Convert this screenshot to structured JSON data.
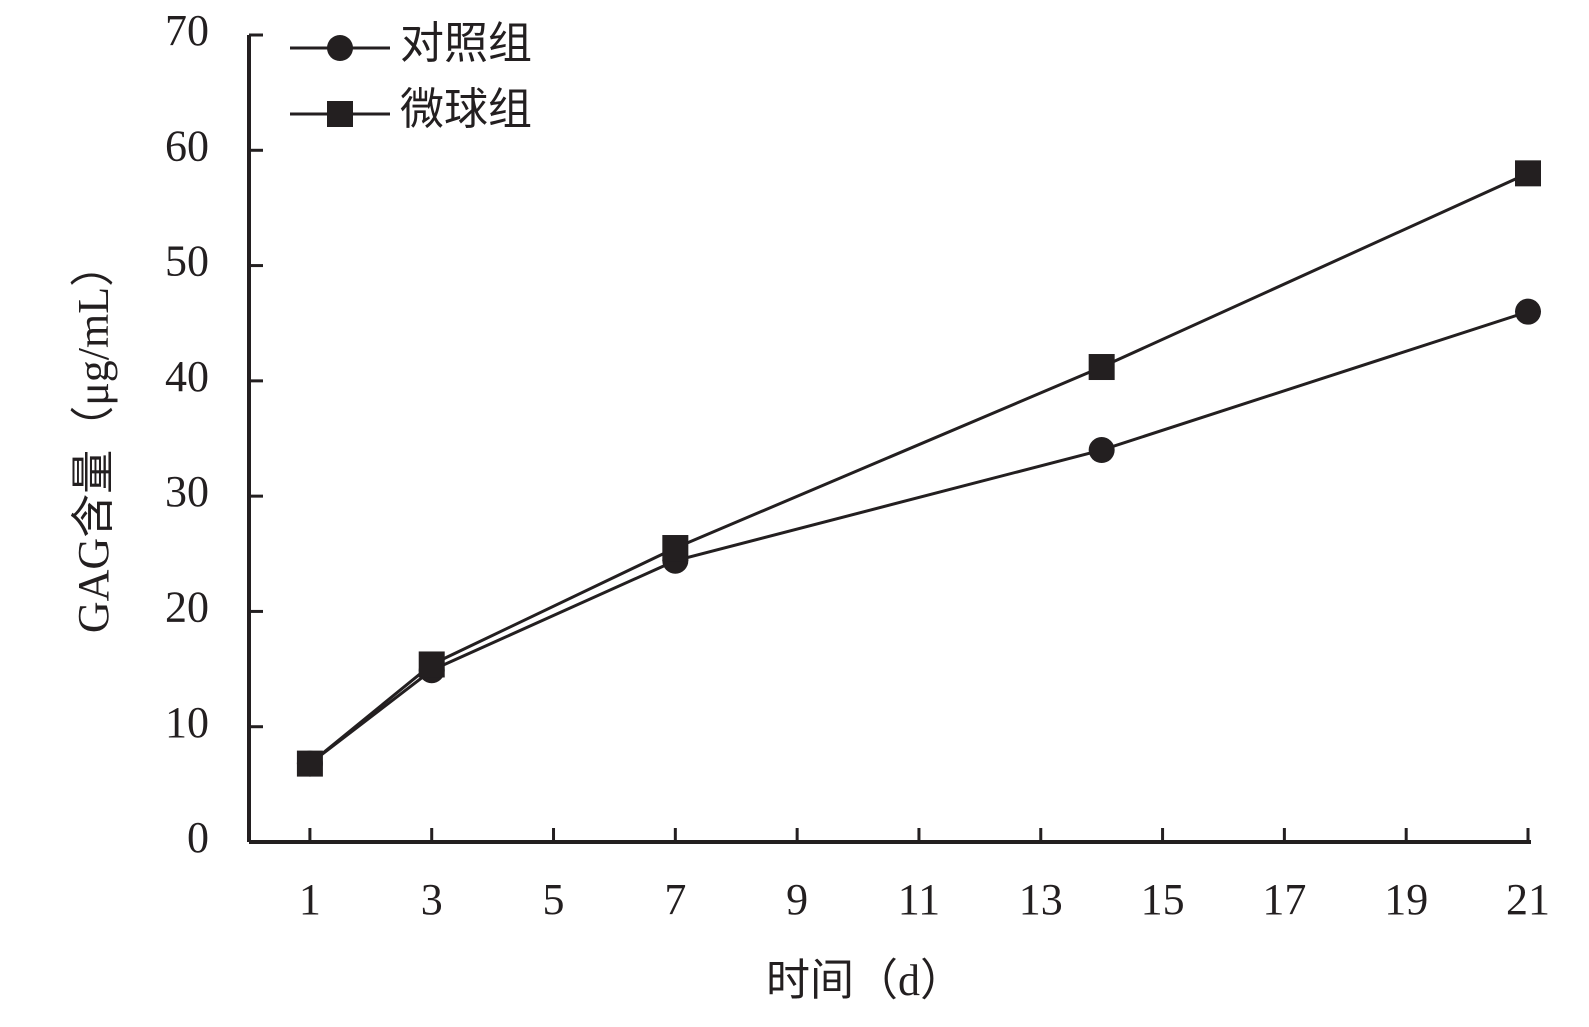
{
  "chart_data": {
    "type": "line",
    "x_label": "时间（d）",
    "y_label": "GAG含量（μg/mL）",
    "x": [
      1,
      3,
      7,
      14,
      21
    ],
    "series": [
      {
        "name": "对照组",
        "color": "#231f20",
        "marker": "circle",
        "values": [
          6.8,
          14.9,
          24.4,
          34.0,
          46.0
        ]
      },
      {
        "name": "微球组",
        "color": "#231f20",
        "marker": "square",
        "values": [
          6.8,
          15.4,
          25.5,
          41.2,
          58.0
        ]
      }
    ],
    "xlim": [
      0,
      21
    ],
    "xticks": [
      1,
      3,
      5,
      7,
      9,
      11,
      13,
      15,
      17,
      19,
      21
    ],
    "ylim": [
      0,
      70
    ],
    "yticks": [
      0,
      10,
      20,
      30,
      40,
      50,
      60,
      70
    ],
    "grid": false,
    "legend": "upper left"
  }
}
